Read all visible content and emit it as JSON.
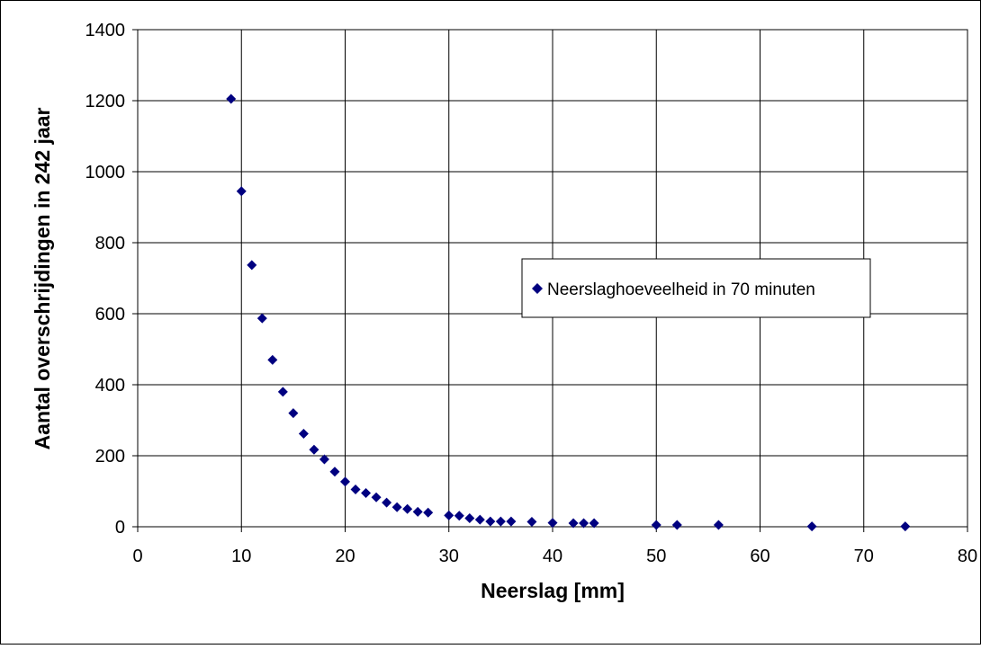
{
  "chart_data": {
    "type": "scatter",
    "xlabel": "Neerslag [mm]",
    "ylabel": "Aantal overschrijdingen in 242 jaar",
    "xlim": [
      0,
      80
    ],
    "ylim": [
      0,
      1400
    ],
    "xticks": [
      "0",
      "10",
      "20",
      "30",
      "40",
      "50",
      "60",
      "70",
      "80"
    ],
    "yticks": [
      "0",
      "200",
      "400",
      "600",
      "800",
      "1000",
      "1200",
      "1400"
    ],
    "grid": true,
    "legend_position": "center-right",
    "marker": "diamond",
    "series": [
      {
        "name": "Neerslaghoeveelheid in 70 minuten",
        "color": "#000080",
        "points": [
          [
            9,
            1205
          ],
          [
            10,
            945
          ],
          [
            11,
            737
          ],
          [
            12,
            587
          ],
          [
            13,
            470
          ],
          [
            14,
            380
          ],
          [
            15,
            320
          ],
          [
            16,
            262
          ],
          [
            17,
            217
          ],
          [
            18,
            190
          ],
          [
            19,
            155
          ],
          [
            20,
            127
          ],
          [
            21,
            105
          ],
          [
            22,
            95
          ],
          [
            23,
            83
          ],
          [
            24,
            68
          ],
          [
            25,
            55
          ],
          [
            26,
            50
          ],
          [
            27,
            42
          ],
          [
            28,
            40
          ],
          [
            30,
            32
          ],
          [
            31,
            31
          ],
          [
            32,
            24
          ],
          [
            33,
            20
          ],
          [
            34,
            15
          ],
          [
            35,
            15
          ],
          [
            36,
            15
          ],
          [
            38,
            14
          ],
          [
            40,
            11
          ],
          [
            42,
            10
          ],
          [
            43,
            10
          ],
          [
            44,
            10
          ],
          [
            50,
            5
          ],
          [
            52,
            5
          ],
          [
            56,
            5
          ],
          [
            65,
            1
          ],
          [
            74,
            1
          ]
        ]
      }
    ]
  }
}
